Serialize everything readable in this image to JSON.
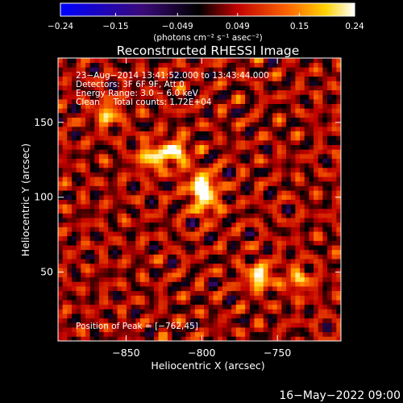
{
  "chart_data": {
    "type": "heatmap",
    "title": "Reconstructed RHESSI Image",
    "xlabel": "Heliocentric X (arcsec)",
    "ylabel": "Heliocentric Y (arcsec)",
    "xlim": [
      -895,
      -708
    ],
    "ylim": [
      4,
      193
    ],
    "x_ticks": [
      -850,
      -800,
      -750
    ],
    "x_tick_labels": [
      "−850",
      "−800",
      "−750"
    ],
    "y_ticks": [
      50,
      100,
      150
    ],
    "y_tick_labels": [
      "50",
      "100",
      "150"
    ],
    "colorbar": {
      "range": [
        -0.24,
        0.24
      ],
      "ticks": [
        -0.24,
        -0.15,
        -0.049,
        0.049,
        0.15,
        0.24
      ],
      "tick_labels": [
        "−0.24",
        "−0.15",
        "−0.049",
        "0.049",
        "0.15",
        "0.24"
      ],
      "unit_label": "(photons cm⁻² s⁻¹ asec⁻²)",
      "position": "top",
      "colors": [
        "#0000ff",
        "#3a0a78",
        "#000000",
        "#c00000",
        "#ff6a00",
        "#ffd200",
        "#ffffff"
      ]
    },
    "annotations": [
      "23−Aug−2014 13:41:52.000 to 13:43:44.000",
      "Detectors: 3F 6F 9F, Att 0",
      "Energy Range: 3.0 − 6.0 keV",
      "Clean     Total counts: 1.72E+04"
    ],
    "peak_label": "Position of Peak = [−762,45]",
    "peak": {
      "x": -762,
      "y": 45,
      "value": 0.24
    },
    "bright_sources": [
      {
        "x": -800,
        "y": 108,
        "value": 0.24
      },
      {
        "x": -817,
        "y": 130,
        "value": 0.19
      },
      {
        "x": -833,
        "y": 127,
        "value": 0.18
      },
      {
        "x": -862,
        "y": 156,
        "value": 0.15
      },
      {
        "x": -762,
        "y": 47,
        "value": 0.2
      },
      {
        "x": -736,
        "y": 45,
        "value": 0.13
      },
      {
        "x": -797,
        "y": 96,
        "value": 0.14
      }
    ],
    "grid": false
  },
  "footer": {
    "date": "16−May−2022 09:00"
  }
}
